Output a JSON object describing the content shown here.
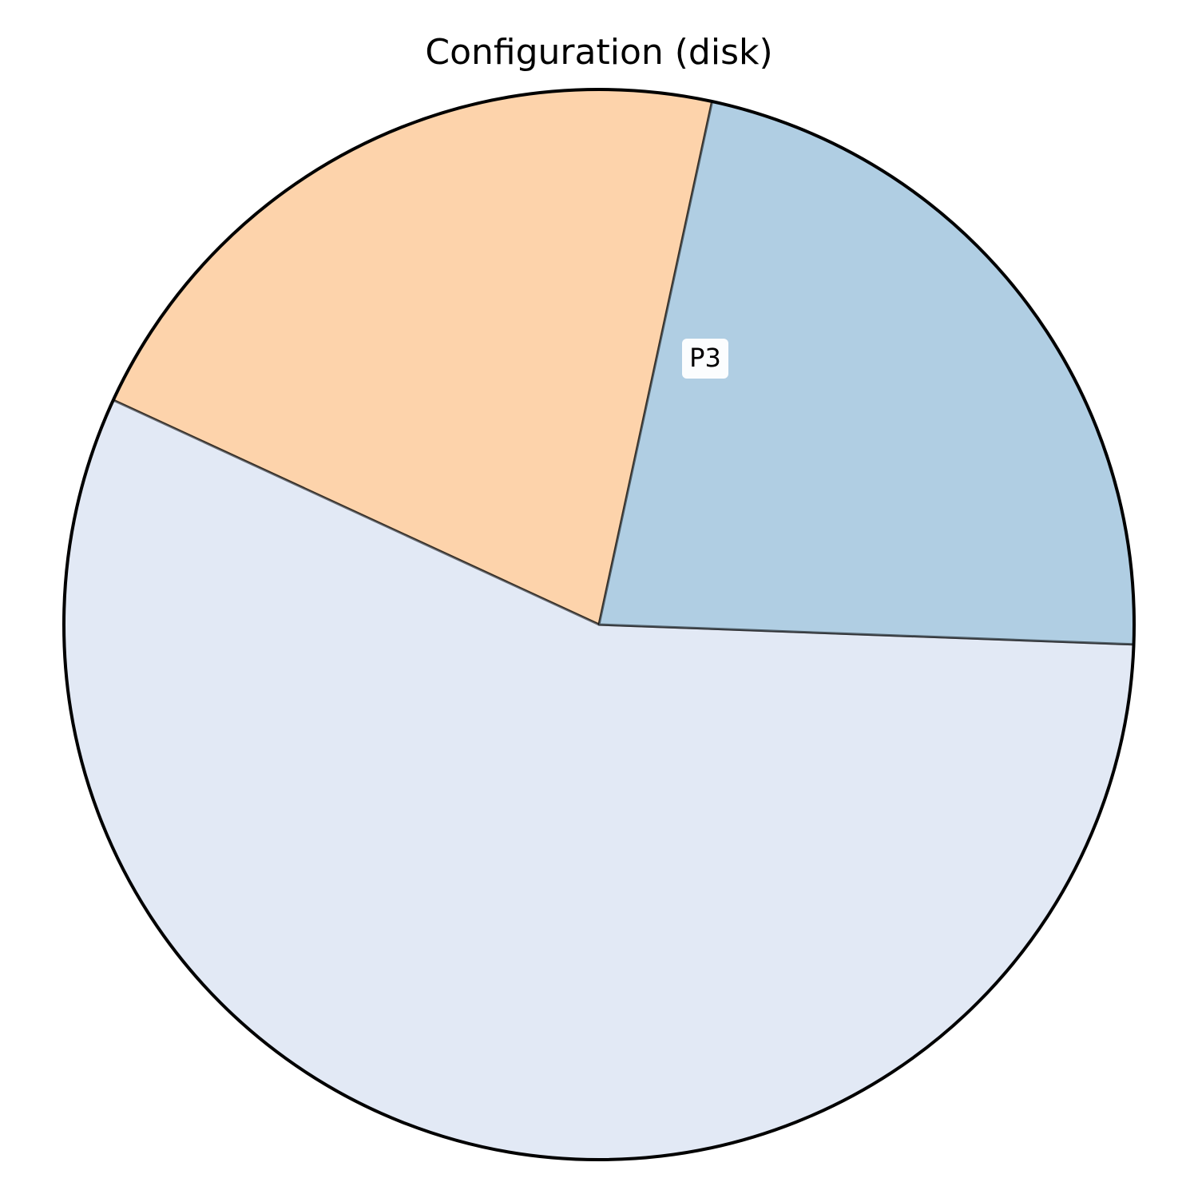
{
  "title": "Configuration (disk)",
  "chart_data": {
    "type": "pie",
    "title": "Configuration (disk)",
    "start_angle_deg": 77.8,
    "slices": [
      {
        "label": "",
        "value": 21.5,
        "color": "#fdd3ab",
        "edge": "#000000"
      },
      {
        "label": "P3",
        "value": 56.3,
        "color": "#e2e9f5",
        "edge": "#000000"
      },
      {
        "label": "",
        "value": 22.2,
        "color": "#b0cee3",
        "edge": "#000000"
      }
    ],
    "label_box_color": "#ffffff"
  }
}
